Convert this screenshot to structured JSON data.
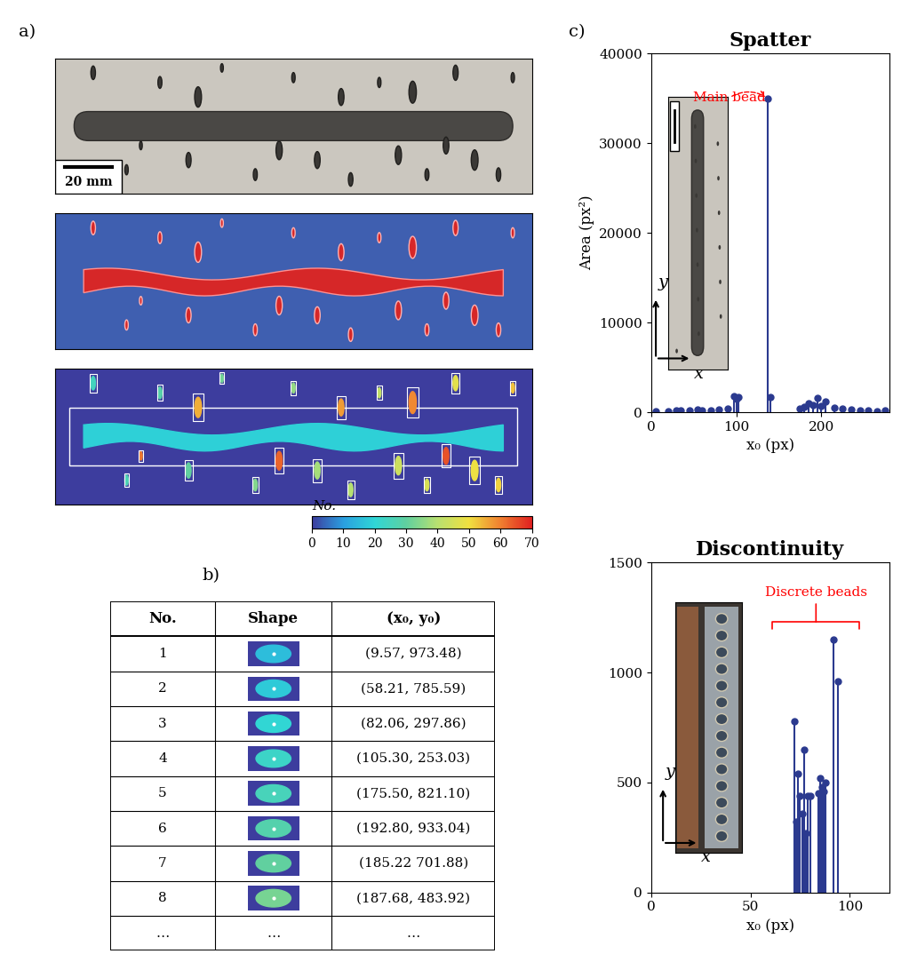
{
  "panel_labels": [
    "a)",
    "b)",
    "c)"
  ],
  "photo": {
    "scale_bar": "20 mm"
  },
  "colorbar": {
    "label": "No.",
    "range": [
      0,
      70
    ],
    "ticks": [
      0,
      10,
      20,
      30,
      40,
      50,
      60,
      70
    ]
  },
  "table": {
    "columns": [
      "No.",
      "Shape",
      "(x₀, y₀)"
    ],
    "rows": [
      [
        1,
        null,
        "(9.57, 973.48)"
      ],
      [
        2,
        null,
        "(58.21, 785.59)"
      ],
      [
        3,
        null,
        "(82.06, 297.86)"
      ],
      [
        4,
        null,
        "(105.30, 253.03)"
      ],
      [
        5,
        null,
        "(175.50, 821.10)"
      ],
      [
        6,
        null,
        "(192.80, 933.04)"
      ],
      [
        7,
        null,
        "(185.22 701.88)"
      ],
      [
        8,
        null,
        "(187.68, 483.92)"
      ],
      [
        "…",
        "…",
        "…"
      ]
    ]
  },
  "chart_data": [
    {
      "type": "stem",
      "title": "Spatter",
      "x_label": "x₀ (px)",
      "y_label": "Area (px²)",
      "x": [
        5,
        20,
        30,
        35,
        45,
        55,
        60,
        70,
        80,
        90,
        97,
        100,
        103,
        137,
        140,
        175,
        180,
        185,
        190,
        195,
        200,
        205,
        215,
        225,
        235,
        245,
        255,
        265,
        275
      ],
      "values": [
        100,
        150,
        200,
        250,
        200,
        300,
        200,
        250,
        300,
        400,
        1800,
        1500,
        1700,
        35000,
        1700,
        400,
        600,
        1000,
        800,
        1600,
        700,
        1200,
        500,
        400,
        300,
        200,
        200,
        100,
        200
      ],
      "color": "#2b3a8f",
      "marker": "o",
      "xlim": [
        0,
        280
      ],
      "xticks": [
        0,
        100,
        200
      ],
      "ylim": [
        0,
        40000
      ],
      "yticks": [
        0,
        10000,
        20000,
        30000,
        40000
      ],
      "annotation": "Main bead",
      "inset_axes": [
        "x",
        "y"
      ]
    },
    {
      "type": "stem",
      "title": "Discontinuity",
      "x_label": "x₀ (px)",
      "x": [
        72,
        73,
        74,
        75,
        76,
        77,
        78,
        79,
        80,
        84,
        85,
        86,
        87,
        88,
        92,
        94
      ],
      "values": [
        780,
        320,
        540,
        440,
        360,
        650,
        270,
        440,
        440,
        450,
        520,
        480,
        460,
        500,
        1150,
        960
      ],
      "color": "#2b3a8f",
      "marker": "o",
      "xlim": [
        0,
        120
      ],
      "xticks": [
        0,
        50,
        100
      ],
      "ylim": [
        0,
        1500
      ],
      "yticks": [
        0,
        500,
        1000,
        1500
      ],
      "annotation": "Discrete beads",
      "inset_axes": [
        "x",
        "y"
      ]
    }
  ]
}
